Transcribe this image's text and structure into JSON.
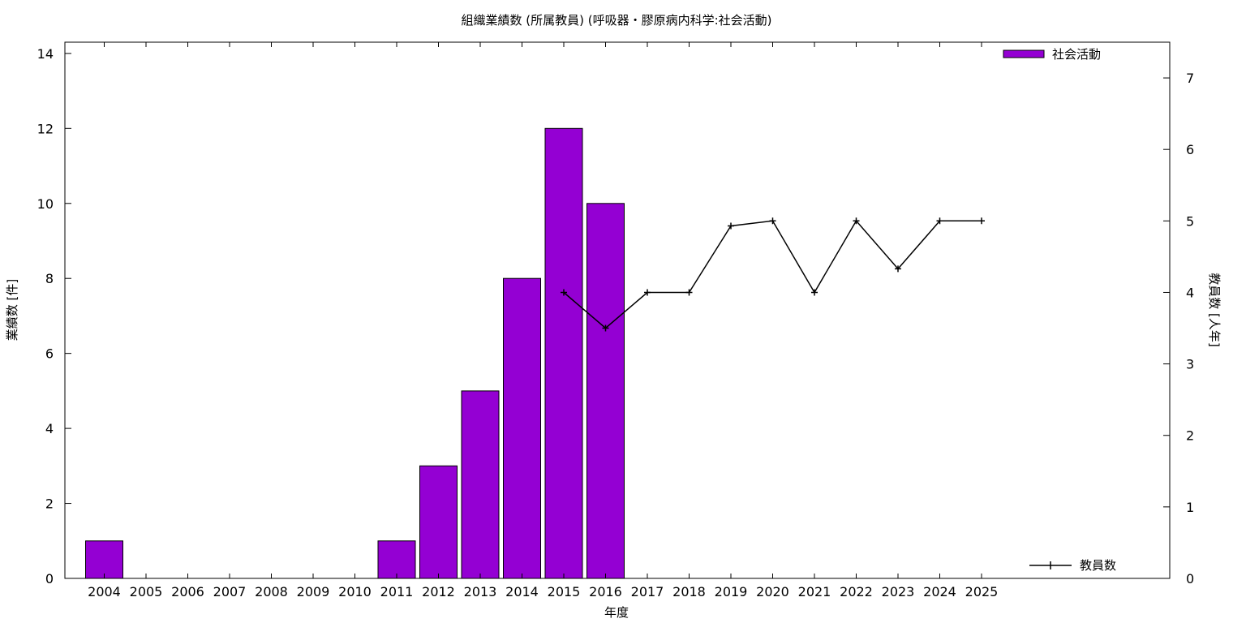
{
  "chart_data": {
    "type": "bar+line",
    "title": "組織業績数 (所属教員) (呼吸器・膠原病内科学:社会活動)",
    "xlabel": "年度",
    "ylabel_left": "業績数 [件]",
    "ylabel_right": "教員数 [人年]",
    "categories": [
      "2004",
      "2005",
      "2006",
      "2007",
      "2008",
      "2009",
      "2010",
      "2011",
      "2012",
      "2013",
      "2014",
      "2015",
      "2016",
      "2017",
      "2018",
      "2019",
      "2020",
      "2021",
      "2022",
      "2023",
      "2024",
      "2025"
    ],
    "y_left_ticks": [
      "0",
      "2",
      "4",
      "6",
      "8",
      "10",
      "12",
      "14"
    ],
    "y_left_lim": [
      0,
      14.3
    ],
    "y_right_ticks": [
      "0",
      "1",
      "2",
      "3",
      "4",
      "5",
      "6",
      "7"
    ],
    "y_right_lim": [
      0,
      7.5
    ],
    "grid": false,
    "series": [
      {
        "name": "社会活動",
        "kind": "bar",
        "axis": "left",
        "color": "#9400D3",
        "values": [
          1,
          0,
          0,
          0,
          0,
          0,
          0,
          1,
          3,
          5,
          8,
          12,
          10,
          null,
          null,
          null,
          null,
          null,
          null,
          null,
          null,
          null
        ]
      },
      {
        "name": "教員数",
        "kind": "line",
        "axis": "right",
        "color": "#000000",
        "values": [
          null,
          null,
          null,
          null,
          null,
          null,
          null,
          null,
          null,
          null,
          null,
          4,
          3.5,
          4,
          4,
          4.93,
          5,
          4,
          5,
          4.33,
          5,
          5
        ]
      }
    ],
    "legend": [
      {
        "label": "社会活動",
        "placement": "top-right"
      },
      {
        "label": "教員数",
        "placement": "bottom-right"
      }
    ]
  }
}
